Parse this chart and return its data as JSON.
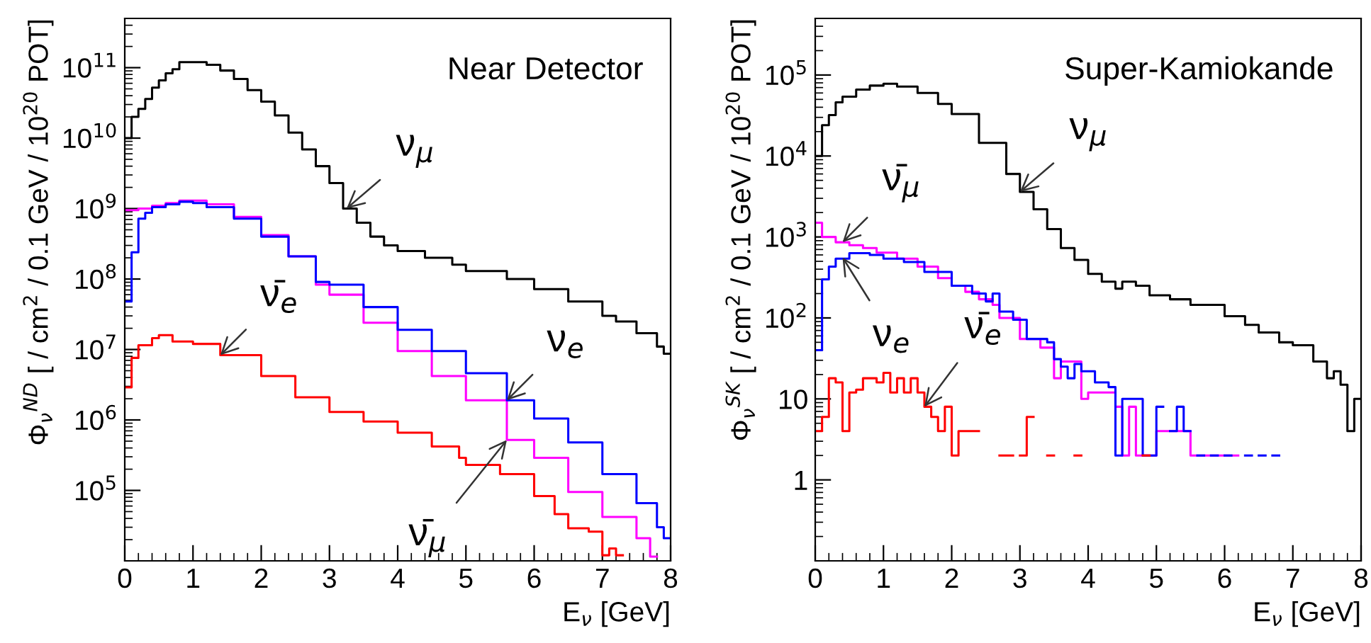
{
  "chart_data": [
    {
      "type": "step",
      "title": "Near Detector",
      "xlabel": "E$_{ν}$ [GeV]",
      "ylabel": "Φ$_{ν}$$^{ND}$ [ / cm$^{2}$ / 0.1 GeV / 10$^{20}$ POT]",
      "log": "y",
      "grid": false,
      "legend": false,
      "xlim": [
        0,
        8
      ],
      "xticks": [
        0,
        1,
        2,
        3,
        4,
        5,
        6,
        7,
        8
      ],
      "ylim": [
        10000,
        500000000000
      ],
      "yticks": [
        {
          "value": 100000,
          "label": "10$^{5}$"
        },
        {
          "value": 1000000,
          "label": "10$^{6}$"
        },
        {
          "value": 10000000,
          "label": "10$^{7}$"
        },
        {
          "value": 100000000,
          "label": "10$^{8}$"
        },
        {
          "value": 1000000000,
          "label": "10$^{9}$"
        },
        {
          "value": 10000000000,
          "label": "10$^{10}$"
        },
        {
          "value": 100000000000,
          "label": "10$^{11}$"
        }
      ],
      "series": [
        {
          "color": "#000000",
          "x": [
            0,
            0.1,
            0.2,
            0.3,
            0.4,
            0.5,
            0.6,
            0.7,
            0.8,
            1.2,
            1.4,
            1.6,
            1.8,
            2.0,
            2.2,
            2.4,
            2.6,
            2.8,
            3.0,
            3.2,
            3.4,
            3.6,
            3.8,
            4.0,
            4.4,
            4.8,
            5.0,
            5.6,
            6.0,
            6.5,
            7.0,
            7.2,
            7.5,
            7.8,
            7.9,
            8.0
          ],
          "values": [
            10000000000.0,
            20000000000.0,
            26000000000.0,
            36000000000.0,
            52000000000.0,
            66000000000.0,
            83000000000.0,
            95000000000.0,
            120000000000.0,
            110000000000.0,
            91000000000.0,
            69000000000.0,
            48000000000.0,
            33000000000.0,
            21000000000.0,
            12000000000.0,
            6900000000.0,
            4000000000.0,
            2300000000.0,
            1000000000.0,
            630000000.0,
            400000000.0,
            300000000.0,
            250000000.0,
            200000000.0,
            160000000.0,
            130000000.0,
            100000000.0,
            72000000.0,
            48000000.0,
            30000000.0,
            25000000.0,
            17000000.0,
            11000000.0,
            8700000.0,
            8700000.0
          ]
        },
        {
          "color": "#ff00ff",
          "x": [
            0,
            0.2,
            0.4,
            0.6,
            0.8,
            1.2,
            1.6,
            2.0,
            2.4,
            2.8,
            3.0,
            3.5,
            4.0,
            4.5,
            5.0,
            5.6,
            6.0,
            6.5,
            7.0,
            7.5,
            7.7,
            7.8
          ],
          "values": [
            950000000.0,
            1000000000.0,
            1100000000.0,
            1200000000.0,
            1300000000.0,
            1150000000.0,
            760000000.0,
            420000000.0,
            210000000.0,
            83000000.0,
            60000000.0,
            24000000.0,
            9500000.0,
            4200000.0,
            1900000.0,
            520000.0,
            290000.0,
            95000.0,
            42000.0,
            21000.0,
            11500.0,
            11500.0
          ]
        },
        {
          "color": "#0000ff",
          "x": [
            0,
            0.1,
            0.2,
            0.3,
            0.4,
            0.6,
            0.8,
            1.0,
            1.2,
            1.6,
            2.0,
            2.4,
            2.8,
            3.0,
            3.5,
            4.0,
            4.5,
            5.0,
            5.6,
            6.0,
            6.5,
            7.0,
            7.5,
            7.8,
            7.9,
            8.0
          ],
          "values": [
            48000000.0,
            240000000.0,
            720000000.0,
            870000000.0,
            1050000000.0,
            1150000000.0,
            1250000000.0,
            1200000000.0,
            1050000000.0,
            720000000.0,
            400000000.0,
            210000000.0,
            91000000.0,
            83000000.0,
            40000000.0,
            19000000.0,
            9500000.0,
            4600000.0,
            1900000.0,
            1050000.0,
            480000.0,
            170000.0,
            66000.0,
            30000.0,
            21000.0,
            21000.0
          ]
        },
        {
          "color": "#ff0000",
          "x": [
            0,
            0.1,
            0.2,
            0.4,
            0.5,
            0.7,
            1.0,
            1.4,
            2.0,
            2.5,
            3.0,
            3.5,
            4.0,
            4.5,
            4.9,
            5.0,
            5.5,
            6.0,
            6.3,
            6.5,
            6.8,
            7.0,
            7.1,
            7.2,
            7.3
          ],
          "values": [
            2900000.0,
            7600000.0,
            11500000.0,
            14500000.0,
            16000000.0,
            13000000.0,
            12000000.0,
            8300000.0,
            4200000.0,
            2100000.0,
            1300000.0,
            950000.0,
            660000.0,
            420000.0,
            290000.0,
            230000.0,
            170000.0,
            83000.0,
            46000.0,
            29000.0,
            26000.0,
            12000.0,
            15000.0,
            12000.0,
            12000.0
          ]
        }
      ],
      "annotations": [
        {
          "text": "ν$_{μ}$",
          "x": 3.25,
          "y": 1000000000.0
        },
        {
          "text": "ν̄$_{e}$",
          "x": 1.4,
          "y": 8300000.0
        },
        {
          "text": "ν$_{e}$",
          "x": 5.6,
          "y": 1900000.0
        },
        {
          "text": "ν̄$_{μ}$",
          "x": 5.6,
          "y": 520000.0
        }
      ]
    },
    {
      "type": "step",
      "title": "Super-Kamiokande",
      "xlabel": "E$_{ν}$ [GeV]",
      "ylabel": "Φ$_{ν}$$^{SK}$ [ / cm$^{2}$ / 0.1 GeV / 10$^{20}$ POT]",
      "log": "y",
      "grid": false,
      "legend": false,
      "xlim": [
        0,
        8
      ],
      "xticks": [
        0,
        1,
        2,
        3,
        4,
        5,
        6,
        7,
        8
      ],
      "ylim": [
        0.1,
        500000
      ],
      "yticks": [
        1,
        10,
        {
          "value": 100,
          "label": "10$^{2}$"
        },
        {
          "value": 1000,
          "label": "10$^{3}$"
        },
        {
          "value": 10000,
          "label": "10$^{4}$"
        },
        {
          "value": 100000,
          "label": "10$^{5}$"
        }
      ],
      "series": [
        {
          "color": "#000000",
          "x": [
            0,
            0.1,
            0.2,
            0.3,
            0.4,
            0.6,
            0.8,
            1.0,
            1.2,
            1.5,
            1.8,
            2.0,
            2.4,
            2.8,
            3.0,
            3.2,
            3.4,
            3.6,
            3.8,
            4.0,
            4.2,
            4.4,
            4.5,
            4.7,
            4.9,
            5.2,
            5.5,
            6.0,
            6.3,
            6.5,
            6.8,
            7.0,
            7.3,
            7.5,
            7.6,
            7.7,
            7.8,
            7.9,
            8.0
          ],
          "values": [
            10000.0,
            24000.0,
            32000.0,
            46000.0,
            54000.0,
            66000.0,
            74000.0,
            78000.0,
            72000.0,
            60000.0,
            44000.0,
            33000.0,
            14500.0,
            6000.0,
            3600.0,
            2200.0,
            1250.0,
            730,
            520,
            350,
            280,
            230,
            280,
            250,
            190,
            170,
            145,
            105,
            82,
            66,
            50,
            46,
            29,
            18,
            22,
            15,
            4,
            10,
            10
          ]
        },
        {
          "color": "#ff00ff",
          "x": [
            0,
            0.1,
            0.3,
            0.5,
            0.7,
            0.9,
            1.2,
            1.5,
            1.8,
            2.0,
            2.2,
            2.4,
            2.6,
            2.7,
            3.0,
            3.3,
            3.5,
            3.6,
            3.9,
            4.0,
            4.4,
            4.5,
            4.6,
            4.7,
            5.0,
            5.5,
            6.2
          ],
          "values": [
            1500,
            1000,
            860,
            790,
            730,
            640,
            540,
            430,
            310,
            250,
            210,
            170,
            145,
            100,
            55,
            43,
            18,
            29,
            10,
            12,
            8,
            2,
            8,
            2,
            4,
            2,
            2
          ]
        },
        {
          "color": "#0000ff",
          "x": [
            0,
            0.1,
            0.2,
            0.3,
            0.5,
            0.8,
            1.0,
            1.3,
            1.6,
            2.0,
            2.3,
            2.5,
            2.6,
            2.7,
            2.9,
            3.1,
            3.4,
            3.5,
            3.6,
            3.7,
            3.8,
            3.9,
            4.1,
            4.3,
            4.4,
            4.5,
            4.8,
            5.0,
            5.1
          ],
          "values": [
            40,
            300,
            430,
            540,
            630,
            600,
            540,
            490,
            370,
            250,
            200,
            160,
            200,
            120,
            95,
            55,
            50,
            31,
            25,
            18,
            27,
            22,
            16,
            14,
            2,
            10,
            2,
            8,
            8
          ]
        },
        {
          "color": "#0000ff",
          "x": [
            5.2,
            5.3,
            5.4,
            5.5
          ],
          "values": [
            4,
            8,
            4,
            4
          ]
        },
        {
          "color": "#0000ff",
          "x": [
            5.6,
            5.7
          ],
          "values": [
            2,
            2
          ]
        },
        {
          "color": "#0000ff",
          "x": [
            5.8,
            5.9
          ],
          "values": [
            2,
            2
          ]
        },
        {
          "color": "#0000ff",
          "x": [
            6.0,
            6.1
          ],
          "values": [
            2,
            2
          ]
        },
        {
          "color": "#0000ff",
          "x": [
            6.3,
            6.4
          ],
          "values": [
            2,
            2
          ]
        },
        {
          "color": "#0000ff",
          "x": [
            6.5,
            6.6
          ],
          "values": [
            2,
            2
          ]
        },
        {
          "color": "#0000ff",
          "x": [
            6.7,
            6.8
          ],
          "values": [
            2,
            2
          ]
        },
        {
          "color": "#ff0000",
          "x": [
            0,
            0.1,
            0.2,
            0.3,
            0.4,
            0.5,
            0.6,
            0.7,
            0.9,
            1.0,
            1.1,
            1.2,
            1.3,
            1.4,
            1.5,
            1.6,
            1.7,
            1.8,
            1.9,
            2.0,
            2.1,
            2.4
          ],
          "values": [
            4,
            6,
            18,
            16,
            4,
            12,
            13,
            18,
            16,
            21,
            12,
            18,
            12,
            18,
            12,
            8,
            6,
            4,
            8,
            2,
            4,
            4
          ]
        },
        {
          "color": "#ff0000",
          "x": [
            2.7,
            2.9
          ],
          "values": [
            2,
            2
          ]
        },
        {
          "color": "#ff0000",
          "x": [
            3.0,
            3.1,
            3.2
          ],
          "values": [
            2,
            6,
            6
          ]
        },
        {
          "color": "#ff0000",
          "x": [
            3.4,
            3.5
          ],
          "values": [
            2,
            2
          ]
        },
        {
          "color": "#ff0000",
          "x": [
            3.8,
            3.9
          ],
          "values": [
            2,
            2
          ]
        },
        {
          "color": "#ff0000",
          "x": [
            4.8,
            4.9
          ],
          "values": [
            2,
            2
          ]
        }
      ],
      "annotations": [
        {
          "text": "ν̄$_{μ}$",
          "x": 0.4,
          "y": 860
        },
        {
          "text": "ν$_{μ}$",
          "x": 3.0,
          "y": 3600.0
        },
        {
          "text": "ν$_{e}$",
          "x": 0.4,
          "y": 560
        },
        {
          "text": "ν̄$_{e}$",
          "x": 1.6,
          "y": 8
        }
      ]
    }
  ]
}
